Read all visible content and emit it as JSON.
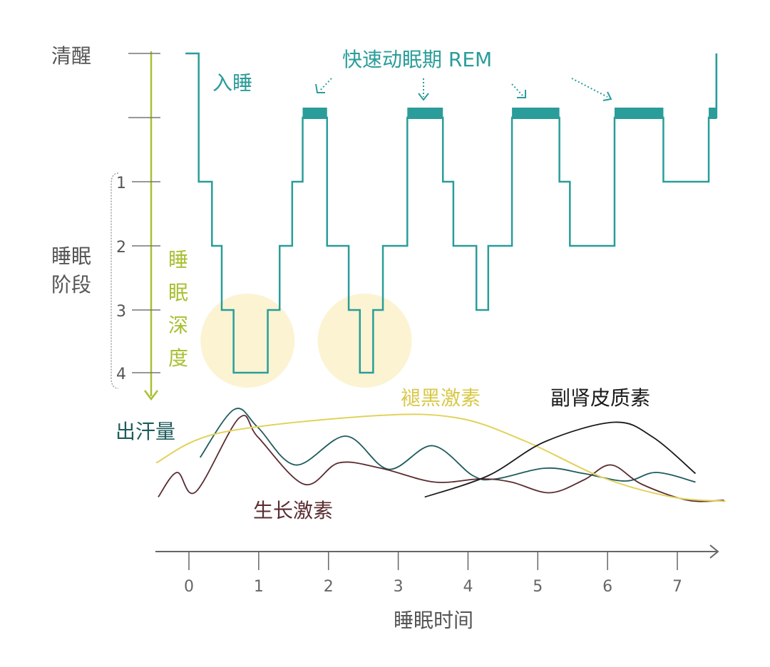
{
  "chart_data": {
    "type": "line",
    "title": "",
    "xlabel": "睡眠时间",
    "x_ticks": [
      0,
      1,
      2,
      3,
      4,
      5,
      6,
      7
    ],
    "y_top_label": "清醒",
    "y_group_label": "睡眠阶段",
    "y_depth_label": "睡眠深度",
    "stage_levels": [
      "清醒",
      "",
      "1",
      "2",
      "3",
      "4"
    ],
    "onset_label": "入睡",
    "rem_label": "快速动眠期 REM",
    "hypnogram": {
      "color": "#2a9d9a",
      "steps": [
        {
          "t0": -0.05,
          "t1": 0.14,
          "stage": "清醒"
        },
        {
          "t0": 0.14,
          "t1": 0.33,
          "stage": "1"
        },
        {
          "t0": 0.33,
          "t1": 0.47,
          "stage": "2"
        },
        {
          "t0": 0.47,
          "t1": 0.64,
          "stage": "3"
        },
        {
          "t0": 0.64,
          "t1": 1.13,
          "stage": "4"
        },
        {
          "t0": 1.13,
          "t1": 1.3,
          "stage": "3"
        },
        {
          "t0": 1.3,
          "t1": 1.48,
          "stage": "2"
        },
        {
          "t0": 1.48,
          "t1": 1.63,
          "stage": "1"
        },
        {
          "t0": 1.63,
          "t1": 1.98,
          "stage": "REM"
        },
        {
          "t0": 1.98,
          "t1": 2.29,
          "stage": "2"
        },
        {
          "t0": 2.29,
          "t1": 2.45,
          "stage": "3"
        },
        {
          "t0": 2.45,
          "t1": 2.64,
          "stage": "4"
        },
        {
          "t0": 2.64,
          "t1": 2.78,
          "stage": "3"
        },
        {
          "t0": 2.78,
          "t1": 3.13,
          "stage": "2"
        },
        {
          "t0": 3.13,
          "t1": 3.64,
          "stage": "REM"
        },
        {
          "t0": 3.64,
          "t1": 3.79,
          "stage": "1"
        },
        {
          "t0": 3.79,
          "t1": 4.12,
          "stage": "2"
        },
        {
          "t0": 4.12,
          "t1": 4.29,
          "stage": "3"
        },
        {
          "t0": 4.29,
          "t1": 4.63,
          "stage": "2"
        },
        {
          "t0": 4.63,
          "t1": 5.31,
          "stage": "REM"
        },
        {
          "t0": 5.31,
          "t1": 5.46,
          "stage": "1"
        },
        {
          "t0": 5.46,
          "t1": 6.1,
          "stage": "2"
        },
        {
          "t0": 6.1,
          "t1": 6.8,
          "stage": "REM"
        },
        {
          "t0": 6.8,
          "t1": 7.45,
          "stage": "1"
        },
        {
          "t0": 7.45,
          "t1": 7.56,
          "stage": "REM"
        },
        {
          "t0": 7.56,
          "t1": 7.56,
          "stage": "清醒"
        }
      ],
      "deep_sleep_highlights": [
        0.84,
        2.52
      ],
      "highlight_color": "#fbf3d2"
    },
    "series": [
      {
        "name": "出汗量",
        "color": "#1f5c5c",
        "points": [
          [
            0.16,
            52
          ],
          [
            0.65,
            97
          ],
          [
            0.99,
            80
          ],
          [
            1.53,
            45
          ],
          [
            2.25,
            72
          ],
          [
            2.86,
            41
          ],
          [
            3.49,
            63
          ],
          [
            4.07,
            35
          ],
          [
            4.4,
            32
          ],
          [
            5.11,
            42
          ],
          [
            5.66,
            37
          ],
          [
            6.26,
            30
          ],
          [
            6.7,
            38
          ],
          [
            7.26,
            29
          ]
        ]
      },
      {
        "name": "生长激素",
        "color": "#5a2c30",
        "points": [
          [
            -0.44,
            15
          ],
          [
            -0.17,
            38
          ],
          [
            0.1,
            20
          ],
          [
            0.72,
            89
          ],
          [
            0.99,
            71
          ],
          [
            1.65,
            27
          ],
          [
            2.15,
            47
          ],
          [
            2.75,
            42
          ],
          [
            3.52,
            29
          ],
          [
            4.18,
            32
          ],
          [
            4.62,
            29
          ],
          [
            5.17,
            19
          ],
          [
            5.66,
            31
          ],
          [
            6.05,
            45
          ],
          [
            6.49,
            27
          ],
          [
            7.15,
            12
          ],
          [
            7.67,
            12
          ]
        ]
      },
      {
        "name": "褪黑激素",
        "color": "#e2d25a",
        "points": [
          [
            -0.47,
            47
          ],
          [
            0.44,
            75
          ],
          [
            2.64,
            91
          ],
          [
            3.85,
            89
          ],
          [
            4.83,
            67
          ],
          [
            5.94,
            33
          ],
          [
            6.93,
            15
          ],
          [
            7.69,
            11
          ]
        ]
      },
      {
        "name": "副肾皮质素",
        "color": "#1a1a1a",
        "points": [
          [
            3.38,
            15
          ],
          [
            4.29,
            35
          ],
          [
            5.11,
            67
          ],
          [
            6.1,
            85
          ],
          [
            6.65,
            71
          ],
          [
            7.26,
            37
          ]
        ]
      }
    ],
    "colors": {
      "teal": "#2a9d9a",
      "depth_axis": "#a8c032",
      "axis": "#666666"
    }
  }
}
